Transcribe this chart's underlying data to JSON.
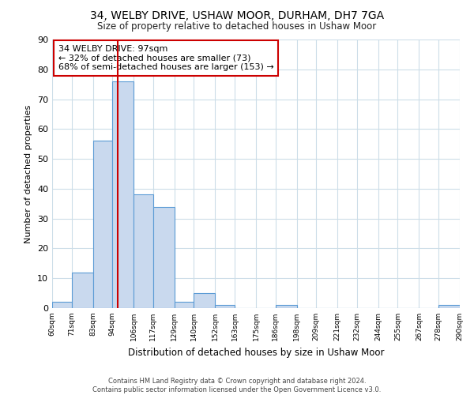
{
  "title1": "34, WELBY DRIVE, USHAW MOOR, DURHAM, DH7 7GA",
  "title2": "Size of property relative to detached houses in Ushaw Moor",
  "xlabel": "Distribution of detached houses by size in Ushaw Moor",
  "ylabel": "Number of detached properties",
  "bin_edges": [
    60,
    71,
    83,
    94,
    106,
    117,
    129,
    140,
    152,
    163,
    175,
    186,
    198,
    209,
    221,
    232,
    244,
    255,
    267,
    278,
    290
  ],
  "bin_labels": [
    "60sqm",
    "71sqm",
    "83sqm",
    "94sqm",
    "106sqm",
    "117sqm",
    "129sqm",
    "140sqm",
    "152sqm",
    "163sqm",
    "175sqm",
    "186sqm",
    "198sqm",
    "209sqm",
    "221sqm",
    "232sqm",
    "244sqm",
    "255sqm",
    "267sqm",
    "278sqm",
    "290sqm"
  ],
  "counts": [
    2,
    12,
    56,
    76,
    38,
    34,
    2,
    5,
    1,
    0,
    0,
    1,
    0,
    0,
    0,
    0,
    0,
    0,
    0,
    1
  ],
  "bar_color": "#c9d9ee",
  "bar_edge_color": "#5b9bd5",
  "property_line_x": 97,
  "annotation_title": "34 WELBY DRIVE: 97sqm",
  "annotation_line1": "← 32% of detached houses are smaller (73)",
  "annotation_line2": "68% of semi-detached houses are larger (153) →",
  "annotation_box_color": "#ffffff",
  "annotation_box_edge": "#cc0000",
  "vline_color": "#cc0000",
  "ylim": [
    0,
    90
  ],
  "yticks": [
    0,
    10,
    20,
    30,
    40,
    50,
    60,
    70,
    80,
    90
  ],
  "footer1": "Contains HM Land Registry data © Crown copyright and database right 2024.",
  "footer2": "Contains public sector information licensed under the Open Government Licence v3.0.",
  "bg_color": "#ffffff",
  "grid_color": "#ccdde8"
}
